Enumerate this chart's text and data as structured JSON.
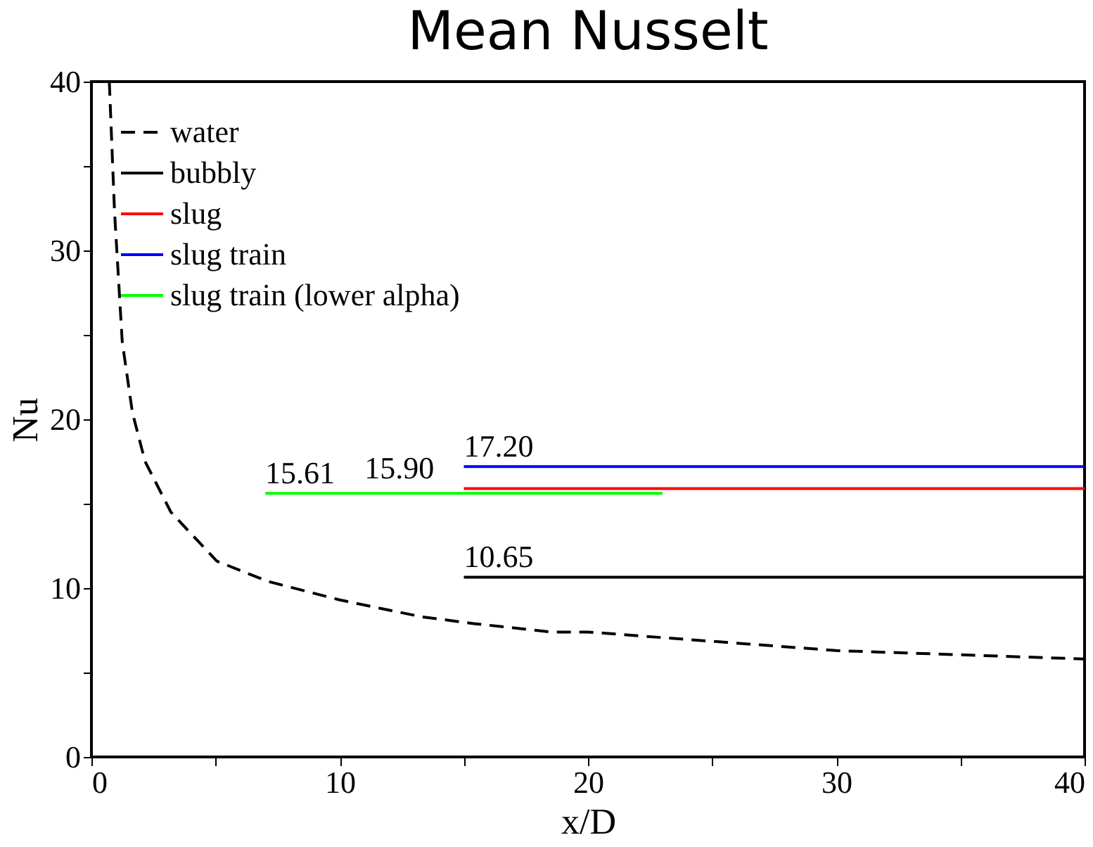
{
  "chart_data": {
    "type": "line",
    "title": "Mean Nusselt",
    "xlabel": "x/D",
    "ylabel": "Nu",
    "xlim": [
      0,
      40
    ],
    "ylim": [
      0,
      40
    ],
    "xticks": [
      0,
      {
        "value": 5,
        "label": null
      },
      10,
      {
        "value": 15,
        "label": null
      },
      20,
      {
        "value": 25,
        "label": null
      },
      30,
      {
        "value": 35,
        "label": null
      },
      40
    ],
    "yticks": [
      0,
      {
        "value": 5,
        "label": null
      },
      10,
      {
        "value": 15,
        "label": null
      },
      20,
      {
        "value": 25,
        "label": null
      },
      30,
      {
        "value": 35,
        "label": null
      },
      40
    ],
    "grid": false,
    "legend": "top left",
    "series": [
      {
        "name": "water",
        "color": "#000000",
        "line_style": "dashed",
        "x": [
          0.72,
          0.93,
          1.24,
          1.65,
          2.16,
          3.2,
          5.05,
          7.1,
          10,
          13.3,
          15.4,
          18.5,
          20,
          30,
          40
        ],
        "values": [
          40,
          32.3,
          24.6,
          20.4,
          17.5,
          14.5,
          11.6,
          10.4,
          9.3,
          8.3,
          7.9,
          7.4,
          7.4,
          6.3,
          5.8
        ]
      },
      {
        "name": "bubbly",
        "color": "#000000",
        "line_style": "solid",
        "x": [
          15,
          40
        ],
        "values": [
          10.65,
          10.65
        ]
      },
      {
        "name": "slug",
        "color": "#ff0000",
        "line_style": "solid",
        "x": [
          15,
          40
        ],
        "values": [
          15.9,
          15.9
        ]
      },
      {
        "name": "slug train",
        "color": "#0000ff",
        "line_style": "solid",
        "x": [
          15,
          40
        ],
        "values": [
          17.2,
          17.2
        ]
      },
      {
        "name": "slug train (lower alpha)",
        "color": "#00ff00",
        "line_style": "solid",
        "x": [
          7,
          23
        ],
        "values": [
          15.61,
          15.61
        ]
      }
    ],
    "annotations": [
      {
        "text": "15.61",
        "x": 7,
        "y": 15.61
      },
      {
        "text": "15.90",
        "x": 11,
        "y": 15.9
      },
      {
        "text": "17.20",
        "x": 15,
        "y": 17.2
      },
      {
        "text": "10.65",
        "x": 15,
        "y": 10.65
      }
    ]
  }
}
